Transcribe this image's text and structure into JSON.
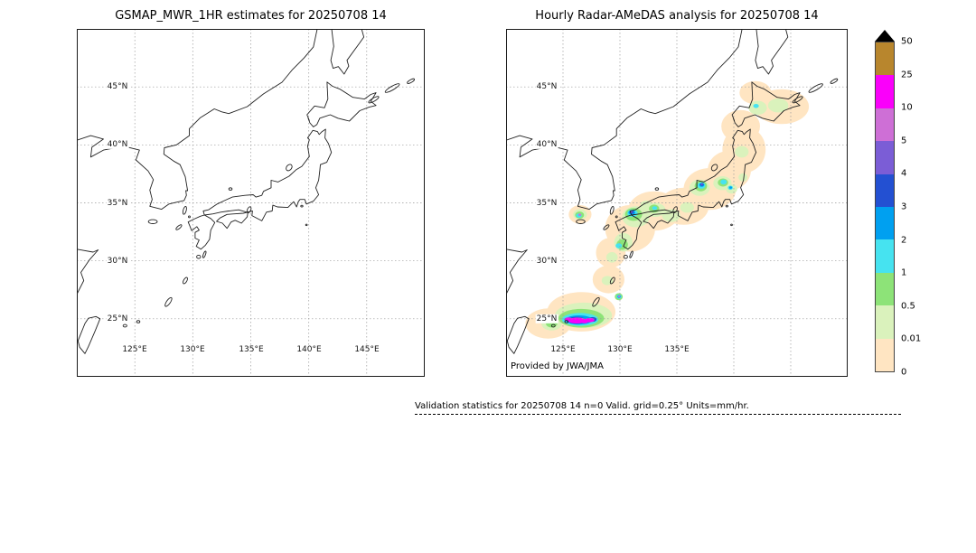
{
  "figure": {
    "footer_text": "Validation statistics for 20250708 14  n=0 Valid. grid=0.25° Units=mm/hr."
  },
  "chart_data": [
    {
      "type": "map",
      "title": "GSMAP_MWR_1HR estimates for 20250708 14",
      "lon_range": [
        120,
        150
      ],
      "lat_range": [
        20,
        50
      ],
      "grid_interval_deg": 5,
      "lat_tick_labels": [
        "45°N",
        "40°N",
        "35°N",
        "30°N",
        "25°N"
      ],
      "lon_tick_labels": [
        "125°E",
        "130°E",
        "135°E",
        "140°E",
        "145°E"
      ],
      "units": "mm/hr",
      "cell_format": [
        "lon_deg",
        "lat_deg",
        "rx_deg",
        "ry_deg",
        "rain_mm_hr"
      ],
      "precip_cells": []
    },
    {
      "type": "map",
      "title": "Hourly Radar-AMeDAS analysis for 20250708 14",
      "credit": "Provided by JWA/JMA",
      "lon_range": [
        120,
        150
      ],
      "lat_range": [
        20,
        50
      ],
      "grid_interval_deg": 5,
      "lat_tick_labels": [
        "45°N",
        "40°N",
        "35°N",
        "30°N",
        "25°N"
      ],
      "lon_tick_labels": [
        "125°E",
        "130°E",
        "135°E"
      ],
      "units": "mm/hr",
      "cell_format": [
        "lon_deg",
        "lat_deg",
        "rx_deg",
        "ry_deg",
        "rain_mm_hr"
      ],
      "precip_cells": [
        [
          144.2,
          43.3,
          2.4,
          1.5,
          0.005
        ],
        [
          141.9,
          44.5,
          1.4,
          1.0,
          0.005
        ],
        [
          140.6,
          41.6,
          1.7,
          1.4,
          0.005
        ],
        [
          140.9,
          39.6,
          1.9,
          2.0,
          0.005
        ],
        [
          139.6,
          37.8,
          1.9,
          1.7,
          0.005
        ],
        [
          137.9,
          36.2,
          2.3,
          1.8,
          0.005
        ],
        [
          135.6,
          34.7,
          2.2,
          1.6,
          0.005
        ],
        [
          133.0,
          34.3,
          2.3,
          1.7,
          0.005
        ],
        [
          130.9,
          32.8,
          2.2,
          2.0,
          0.005
        ],
        [
          129.2,
          30.7,
          1.3,
          1.3,
          0.005
        ],
        [
          129.0,
          28.4,
          1.4,
          1.2,
          0.005
        ],
        [
          126.6,
          25.6,
          3.0,
          1.7,
          0.005
        ],
        [
          123.7,
          24.6,
          2.0,
          1.3,
          0.005
        ],
        [
          126.5,
          34.0,
          1.0,
          0.8,
          0.005
        ],
        [
          131.4,
          33.8,
          1.2,
          0.9,
          0.2
        ],
        [
          133.1,
          34.4,
          0.9,
          0.6,
          0.2
        ],
        [
          134.5,
          33.9,
          0.8,
          0.55,
          0.2
        ],
        [
          132.3,
          34.8,
          0.5,
          0.4,
          0.2
        ],
        [
          130.3,
          31.6,
          0.8,
          0.8,
          0.2
        ],
        [
          129.3,
          30.3,
          0.5,
          0.45,
          0.2
        ],
        [
          137.0,
          36.3,
          0.9,
          0.7,
          0.2
        ],
        [
          139.0,
          36.7,
          0.8,
          0.6,
          0.2
        ],
        [
          139.8,
          36.2,
          0.5,
          0.4,
          0.2
        ],
        [
          140.8,
          37.2,
          0.4,
          0.35,
          0.2
        ],
        [
          140.7,
          39.4,
          0.6,
          0.5,
          0.2
        ],
        [
          142.1,
          43.2,
          0.8,
          0.6,
          0.2
        ],
        [
          143.9,
          43.4,
          0.9,
          0.6,
          0.2
        ],
        [
          126.8,
          25.3,
          2.5,
          1.1,
          0.2
        ],
        [
          124.0,
          24.6,
          0.9,
          0.6,
          0.2
        ],
        [
          128.9,
          28.3,
          0.5,
          0.4,
          0.2
        ],
        [
          126.5,
          34.0,
          0.6,
          0.45,
          0.2
        ],
        [
          135.9,
          34.6,
          0.6,
          0.45,
          0.2
        ],
        [
          131.2,
          34.0,
          0.75,
          0.55,
          0.7
        ],
        [
          133.0,
          34.5,
          0.45,
          0.35,
          0.7
        ],
        [
          130.2,
          31.4,
          0.5,
          0.45,
          0.7
        ],
        [
          137.1,
          36.45,
          0.55,
          0.45,
          0.7
        ],
        [
          139.05,
          36.75,
          0.45,
          0.35,
          0.7
        ],
        [
          126.6,
          25.05,
          2.0,
          0.8,
          0.7
        ],
        [
          124.0,
          24.6,
          0.5,
          0.35,
          0.7
        ],
        [
          129.9,
          26.9,
          0.35,
          0.3,
          0.7
        ],
        [
          126.45,
          33.95,
          0.4,
          0.3,
          0.7
        ],
        [
          131.1,
          34.1,
          0.45,
          0.32,
          1.5
        ],
        [
          137.15,
          36.5,
          0.35,
          0.28,
          1.5
        ],
        [
          139.1,
          36.8,
          0.28,
          0.22,
          1.5
        ],
        [
          139.7,
          36.3,
          0.22,
          0.18,
          1.5
        ],
        [
          126.5,
          24.95,
          1.6,
          0.55,
          1.5
        ],
        [
          129.9,
          31.3,
          0.28,
          0.22,
          1.5
        ],
        [
          133.05,
          34.55,
          0.22,
          0.16,
          1.5
        ],
        [
          141.95,
          43.35,
          0.25,
          0.18,
          1.5
        ],
        [
          126.4,
          33.9,
          0.25,
          0.18,
          1.5
        ],
        [
          129.92,
          26.9,
          0.22,
          0.18,
          1.5
        ],
        [
          131.05,
          34.17,
          0.3,
          0.2,
          2.5
        ],
        [
          137.18,
          36.55,
          0.22,
          0.17,
          2.5
        ],
        [
          126.4,
          24.9,
          1.2,
          0.4,
          2.5
        ],
        [
          129.93,
          26.92,
          0.14,
          0.12,
          2.5
        ],
        [
          139.72,
          36.32,
          0.12,
          0.1,
          2.5
        ],
        [
          131.02,
          34.2,
          0.18,
          0.13,
          3.5
        ],
        [
          137.2,
          36.58,
          0.14,
          0.11,
          3.5
        ],
        [
          126.2,
          24.87,
          0.8,
          0.3,
          3.5
        ],
        [
          127.6,
          24.95,
          0.35,
          0.2,
          3.5
        ],
        [
          126.3,
          24.87,
          0.6,
          0.25,
          4.5
        ],
        [
          125.35,
          24.95,
          0.25,
          0.15,
          4.5
        ],
        [
          137.2,
          36.6,
          0.09,
          0.07,
          4.5
        ],
        [
          131.0,
          34.22,
          0.1,
          0.08,
          4.5
        ],
        [
          126.5,
          24.87,
          0.5,
          0.22,
          7
        ],
        [
          127.45,
          24.9,
          0.3,
          0.16,
          7
        ],
        [
          125.45,
          24.97,
          0.22,
          0.14,
          7
        ],
        [
          129.93,
          26.93,
          0.1,
          0.08,
          7
        ],
        [
          126.48,
          33.97,
          0.12,
          0.09,
          7
        ],
        [
          126.2,
          24.85,
          0.75,
          0.25,
          15
        ],
        [
          127.3,
          24.88,
          0.45,
          0.18,
          15
        ],
        [
          125.5,
          24.98,
          0.28,
          0.15,
          15
        ],
        [
          126.9,
          24.75,
          0.3,
          0.15,
          15
        ]
      ]
    }
  ],
  "colorbar": {
    "units": "mm/hr",
    "levels": [
      0,
      0.01,
      0.5,
      1,
      2,
      3,
      4,
      5,
      10,
      25,
      50
    ],
    "tick_labels_top_to_bottom": [
      "50",
      "25",
      "10",
      "5",
      "4",
      "3",
      "2",
      "1",
      "0.5",
      "0.01",
      "0"
    ],
    "segment_colors_bottom_to_top": [
      "#ffe5c2",
      "#daf2bc",
      "#8de378",
      "#46e3f0",
      "#00a0f0",
      "#2350d2",
      "#7b5dd6",
      "#ce6fd6",
      "#fa00fa",
      "#b8862d"
    ],
    "over_range_color": "#000000"
  }
}
